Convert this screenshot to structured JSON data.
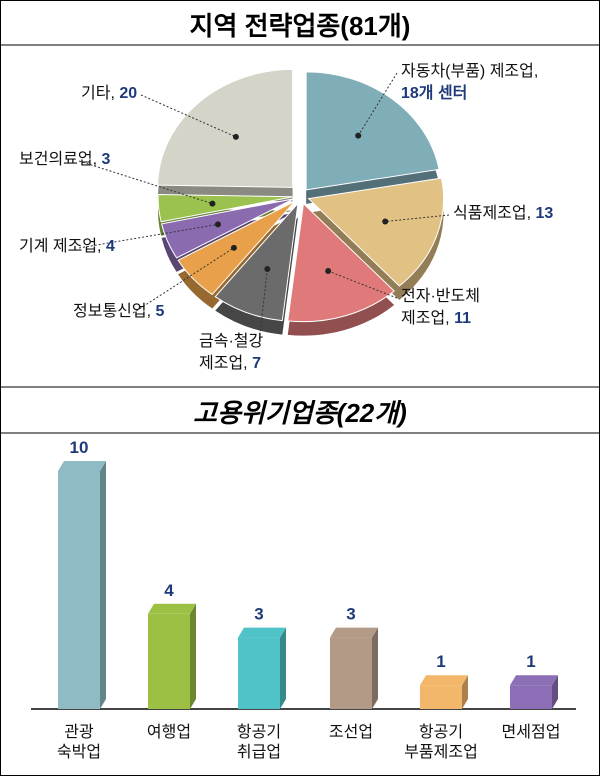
{
  "chart_data": [
    {
      "type": "pie",
      "title": "지역 전략업종(81개)",
      "categories": [
        "자동차(부품) 제조업,",
        "식품제조업,",
        "전자·반도체\n제조업,",
        "금속·철강\n제조업,",
        "정보통신업,",
        "기계 제조업,",
        "보건의료업,",
        "기타,"
      ],
      "values": [
        18,
        13,
        11,
        7,
        5,
        4,
        3,
        20
      ],
      "value_labels": [
        "18개 센터",
        "13",
        "11",
        "7",
        "5",
        "4",
        "3",
        "20"
      ],
      "colors": [
        "#7fadb8",
        "#e2c184",
        "#e07a7a",
        "#6b6b6b",
        "#e8a04a",
        "#8a6bb0",
        "#9bc24e",
        "#d4d4c8"
      ]
    },
    {
      "type": "bar",
      "title": "고용위기업종(22개)",
      "categories": [
        "관광\n숙박업",
        "여행업",
        "항공기\n취급업",
        "조선업",
        "항공기\n부품제조업",
        "면세점업"
      ],
      "values": [
        10,
        4,
        3,
        3,
        1,
        1
      ],
      "colors": [
        "#8fbcc4",
        "#9cc043",
        "#4fc3c8",
        "#b29a86",
        "#f3b76b",
        "#8d6fb8"
      ]
    }
  ]
}
